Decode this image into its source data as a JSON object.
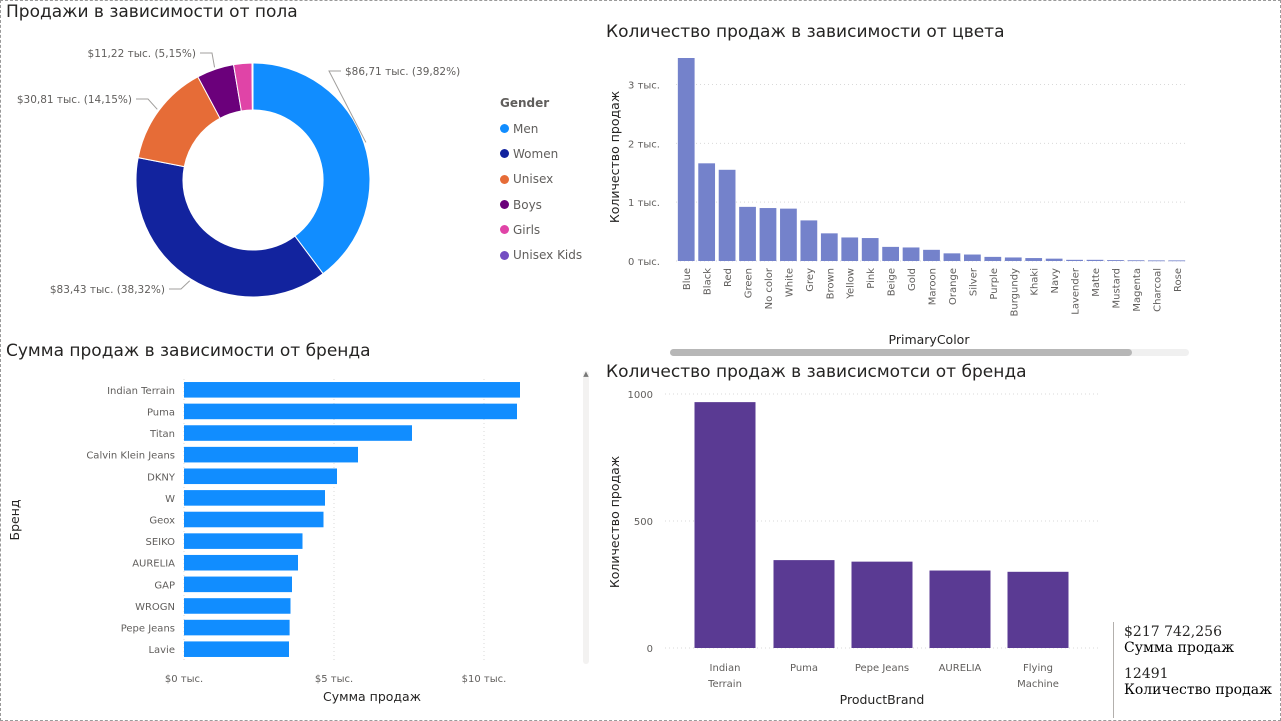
{
  "titles": {
    "gender": "Продажи в зависимости от пола",
    "color": "Количество продаж в зависимости от цвета",
    "brand_sum": "Сумма продаж в зависимости от бренда",
    "brand_count": "Количество продаж в зависисмотси от бренда"
  },
  "legend": {
    "title": "Gender",
    "items": [
      {
        "label": "Men",
        "color": "#118dff"
      },
      {
        "label": "Women",
        "color": "#12239e"
      },
      {
        "label": "Unisex",
        "color": "#e66c37"
      },
      {
        "label": "Boys",
        "color": "#6b007b"
      },
      {
        "label": "Girls",
        "color": "#e044a7"
      },
      {
        "label": "Unisex Kids",
        "color": "#744ec2"
      }
    ]
  },
  "kpis": [
    {
      "value": "$217 742,256",
      "label": "Сумма продаж"
    },
    {
      "value": "12491",
      "label": "Количество продаж"
    }
  ],
  "chart_data": [
    {
      "type": "pie",
      "variant": "donut",
      "title": "Продажи в зависимости от пола",
      "categories": [
        "Men",
        "Women",
        "Unisex",
        "Boys",
        "Girls",
        "Unisex Kids"
      ],
      "values": [
        86.71,
        83.43,
        30.81,
        11.22,
        5.5,
        0.3
      ],
      "colors": [
        "#118dff",
        "#12239e",
        "#e66c37",
        "#6b007b",
        "#e044a7",
        "#744ec2"
      ],
      "data_labels": [
        "$86,71 тыс. (39,82%)",
        "$83,43 тыс. (38,32%)",
        "$30,81 тыс. (14,15%)",
        "$11,22 тыс. (5,15%)",
        "",
        ""
      ],
      "legend": "right"
    },
    {
      "type": "bar",
      "title": "Количество продаж в зависимости от цвета",
      "xlabel": "PrimaryColor",
      "ylabel": "Количество продаж",
      "categories": [
        "Blue",
        "Black",
        "Red",
        "Green",
        "No color",
        "White",
        "Grey",
        "Brown",
        "Yellow",
        "Pink",
        "Beige",
        "Gold",
        "Maroon",
        "Orange",
        "Silver",
        "Purple",
        "Burgundy",
        "Khaki",
        "Navy",
        "Lavender",
        "Matte",
        "Mustard",
        "Magenta",
        "Charcoal",
        "Rose"
      ],
      "values": [
        3450,
        1660,
        1550,
        920,
        900,
        890,
        690,
        470,
        400,
        390,
        240,
        230,
        190,
        130,
        110,
        70,
        60,
        50,
        40,
        20,
        20,
        15,
        12,
        10,
        10
      ],
      "yticks": [
        0,
        1000,
        2000,
        3000
      ],
      "ytick_labels": [
        "0 тыс.",
        "1 тыс.",
        "2 тыс.",
        "3 тыс."
      ],
      "ylim": [
        0,
        3600
      ],
      "color": "#7482cb",
      "grid": true
    },
    {
      "type": "bar",
      "orientation": "horizontal",
      "title": "Сумма продаж в зависимости от бренда",
      "xlabel": "Сумма продаж",
      "ylabel": "Бренд",
      "categories": [
        "Indian Terrain",
        "Puma",
        "Titan",
        "Calvin Klein Jeans",
        "DKNY",
        "W",
        "Geox",
        "SEIKO",
        "AURELIA",
        "GAP",
        "WROGN",
        "Pepe Jeans",
        "Lavie"
      ],
      "values": [
        11200,
        11100,
        7600,
        5800,
        5100,
        4700,
        4650,
        3950,
        3800,
        3600,
        3550,
        3520,
        3500
      ],
      "xticks": [
        0,
        5000,
        10000
      ],
      "xtick_labels": [
        "$0 тыс.",
        "$5 тыс.",
        "$10 тыс."
      ],
      "xlim": [
        0,
        11500
      ],
      "color": "#118dff",
      "grid": true
    },
    {
      "type": "bar",
      "title": "Количество продаж в зависисмотси от бренда",
      "xlabel": "ProductBrand",
      "ylabel": "Количество продаж",
      "categories": [
        "Indian Terrain",
        "Puma",
        "Pepe Jeans",
        "AURELIA",
        "Flying Machine"
      ],
      "values": [
        968,
        346,
        340,
        305,
        300
      ],
      "yticks": [
        0,
        500,
        1000
      ],
      "ylim": [
        0,
        1000
      ],
      "color": "#5a3a93",
      "grid": true
    }
  ]
}
